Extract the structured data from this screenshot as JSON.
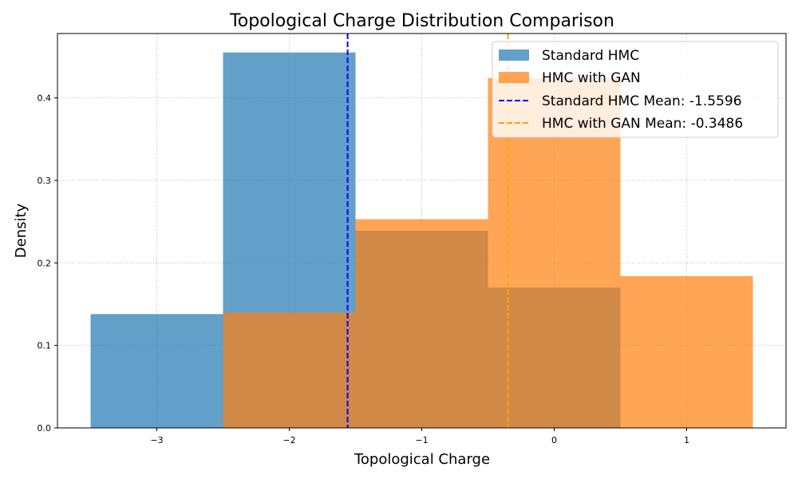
{
  "chart_data": {
    "type": "bar",
    "title": "Topological Charge Distribution Comparison",
    "xlabel": "Topological Charge",
    "ylabel": "Density",
    "xlim": [
      -3.75,
      1.75
    ],
    "ylim": [
      0,
      0.478
    ],
    "xticks": [
      -3,
      -2,
      -1,
      0,
      1
    ],
    "xtick_labels": [
      "−3",
      "−2",
      "−1",
      "0",
      "1"
    ],
    "yticks": [
      0.0,
      0.1,
      0.2,
      0.3,
      0.4
    ],
    "ytick_labels": [
      "0.0",
      "0.1",
      "0.2",
      "0.3",
      "0.4"
    ],
    "grid": true,
    "legend_position": "top-right",
    "series": [
      {
        "name": "Standard HMC",
        "color": "#1f77b4",
        "bins": [
          {
            "x0": -3.5,
            "x1": -2.5,
            "value": 0.138
          },
          {
            "x0": -2.5,
            "x1": -1.5,
            "value": 0.455
          },
          {
            "x0": -1.5,
            "x1": -0.5,
            "value": 0.239
          },
          {
            "x0": -0.5,
            "x1": 0.5,
            "value": 0.17
          }
        ]
      },
      {
        "name": "HMC with GAN",
        "color": "#ff7f0e",
        "bins": [
          {
            "x0": -2.5,
            "x1": -1.5,
            "value": 0.14
          },
          {
            "x0": -1.5,
            "x1": -0.5,
            "value": 0.253
          },
          {
            "x0": -0.5,
            "x1": 0.5,
            "value": 0.424
          },
          {
            "x0": 0.5,
            "x1": 1.5,
            "value": 0.184
          }
        ]
      }
    ],
    "mean_lines": [
      {
        "name": "Standard HMC Mean: -1.5596",
        "x": -1.5596,
        "color": "#0000ff"
      },
      {
        "name": "HMC with GAN Mean: -0.3486",
        "x": -0.3486,
        "color": "#ffa500"
      }
    ]
  }
}
